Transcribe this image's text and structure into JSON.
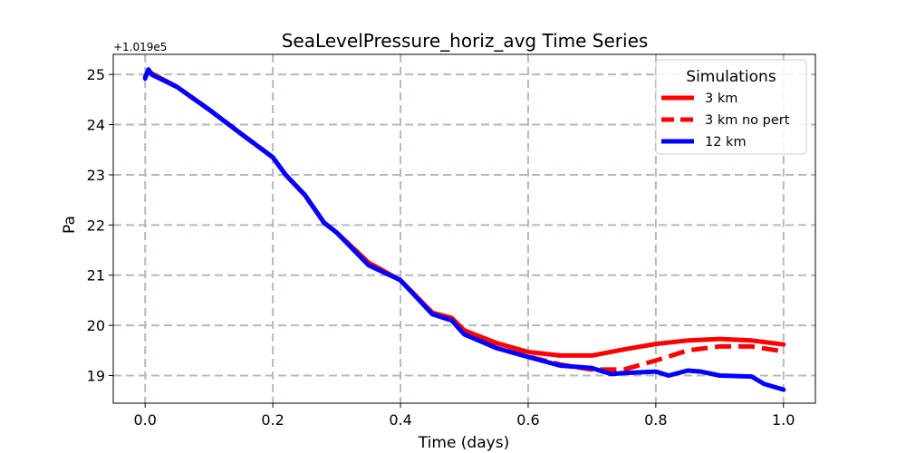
{
  "chart_data": {
    "type": "line",
    "title": "SeaLevelPressure_horiz_avg Time Series",
    "xlabel": "Time (days)",
    "ylabel": "Pa",
    "y_offset_label": "+1.019e5",
    "xlim": [
      -0.05,
      1.05
    ],
    "ylim": [
      18.45,
      25.4
    ],
    "x_ticks": [
      0.0,
      0.2,
      0.4,
      0.6,
      0.8,
      1.0
    ],
    "x_tick_labels": [
      "0.0",
      "0.2",
      "0.4",
      "0.6",
      "0.8",
      "1.0"
    ],
    "y_ticks": [
      19,
      20,
      21,
      22,
      23,
      24,
      25
    ],
    "y_tick_labels": [
      "19",
      "20",
      "21",
      "22",
      "23",
      "24",
      "25"
    ],
    "grid": true,
    "legend": {
      "title": "Simulations",
      "placement": "top-right"
    },
    "colors": {
      "red": "#ff0000",
      "blue": "#0000ff",
      "grid": "#b0bcbc"
    },
    "series": [
      {
        "name": "3 km",
        "style": "solid",
        "color": "#ff0000",
        "x": [
          0.0,
          0.005,
          0.01,
          0.05,
          0.1,
          0.15,
          0.2,
          0.22,
          0.25,
          0.28,
          0.3,
          0.35,
          0.4,
          0.45,
          0.48,
          0.5,
          0.55,
          0.6,
          0.65,
          0.7,
          0.75,
          0.8,
          0.85,
          0.9,
          0.95,
          1.0
        ],
        "y": [
          24.95,
          25.08,
          25.02,
          24.75,
          24.3,
          23.82,
          23.35,
          23.0,
          22.6,
          22.05,
          21.85,
          21.25,
          20.9,
          20.25,
          20.15,
          19.9,
          19.65,
          19.47,
          19.4,
          19.4,
          19.52,
          19.63,
          19.7,
          19.73,
          19.7,
          19.62
        ]
      },
      {
        "name": "3 km no pert",
        "style": "dashed",
        "color": "#ff0000",
        "x": [
          0.0,
          0.005,
          0.01,
          0.05,
          0.1,
          0.15,
          0.2,
          0.22,
          0.25,
          0.28,
          0.3,
          0.35,
          0.4,
          0.45,
          0.48,
          0.5,
          0.55,
          0.6,
          0.65,
          0.7,
          0.75,
          0.8,
          0.85,
          0.9,
          0.95,
          1.0
        ],
        "y": [
          24.95,
          25.08,
          25.02,
          24.75,
          24.3,
          23.82,
          23.35,
          23.0,
          22.6,
          22.05,
          21.85,
          21.25,
          20.9,
          20.25,
          20.13,
          19.85,
          19.55,
          19.38,
          19.22,
          19.12,
          19.12,
          19.3,
          19.5,
          19.58,
          19.58,
          19.48
        ]
      },
      {
        "name": "12 km",
        "style": "solid",
        "color": "#0000ff",
        "x": [
          0.0,
          0.005,
          0.01,
          0.05,
          0.1,
          0.15,
          0.2,
          0.22,
          0.25,
          0.28,
          0.3,
          0.35,
          0.4,
          0.45,
          0.48,
          0.5,
          0.55,
          0.6,
          0.65,
          0.7,
          0.73,
          0.75,
          0.8,
          0.82,
          0.85,
          0.87,
          0.9,
          0.95,
          0.97,
          1.0
        ],
        "y": [
          24.92,
          25.1,
          25.0,
          24.75,
          24.3,
          23.82,
          23.35,
          23.0,
          22.6,
          22.05,
          21.85,
          21.2,
          20.9,
          20.22,
          20.1,
          19.82,
          19.55,
          19.37,
          19.2,
          19.15,
          19.03,
          19.05,
          19.08,
          19.0,
          19.1,
          19.08,
          19.0,
          18.98,
          18.83,
          18.72
        ]
      }
    ]
  }
}
